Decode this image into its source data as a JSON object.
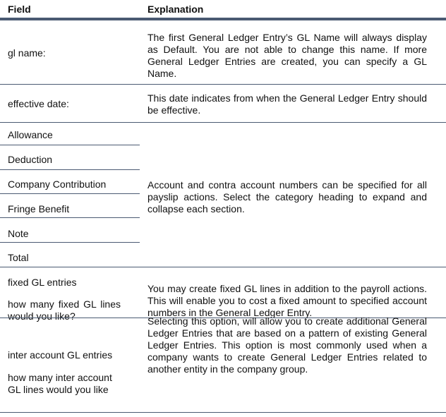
{
  "header": {
    "field": "Field",
    "explanation": "Explanation"
  },
  "rows": [
    {
      "field": "gl name:",
      "explanation": "The first General Ledger Entry’s GL Name will always display as Default.  You are not able to change this name. If more General Ledger Entries are created, you can specify a GL Name."
    },
    {
      "field": "effective date:",
      "explanation": "This date indicates from when the General Ledger Entry should be effective."
    },
    {
      "fields": [
        "Allowance",
        "Deduction",
        "Company Contribution",
        "Fringe Benefit",
        "Note",
        "Total"
      ],
      "explanation": "Account and contra account numbers can be specified for all payslip actions.  Select the category heading to expand and collapse each section."
    },
    {
      "fields": [
        "fixed GL entries",
        "how many fixed GL lines would you like?"
      ],
      "explanation": "You may create fixed GL lines in addition to the payroll actions.  This will enable you to cost a fixed amount to specified account numbers in the General Ledger Entry."
    },
    {
      "fields": [
        "inter account GL entries",
        "how many inter account GL lines would you like"
      ],
      "explanation": "Selecting this option, will allow you to create additional General Ledger Entries that are based on a pattern of existing General Ledger Entries.  This option is most commonly used when a company wants to create General Ledger Entries related to another entity in the company group."
    }
  ]
}
